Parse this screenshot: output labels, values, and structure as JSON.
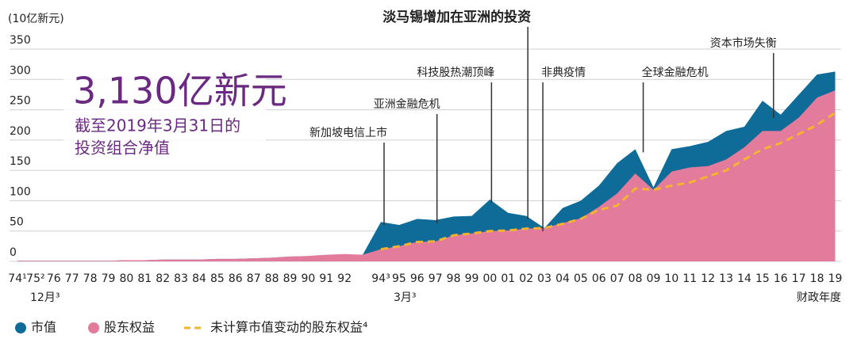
{
  "chart_data": {
    "type": "area",
    "y_unit_label": "(10亿新元)",
    "x_axis_label": "财政年度",
    "categories": [
      "74¹",
      "75²",
      "76",
      "77",
      "78",
      "79",
      "80",
      "81",
      "82",
      "83",
      "84",
      "85",
      "86",
      "87",
      "88",
      "89",
      "90",
      "91",
      "92",
      null,
      "94³",
      "95",
      "96",
      "97",
      "98",
      "99",
      "00",
      "01",
      "02",
      "03",
      "04",
      "05",
      "06",
      "07",
      "08",
      "09",
      "10",
      "11",
      "12",
      "13",
      "14",
      "15",
      "16",
      "17",
      "18",
      "19"
    ],
    "x_sublabels": [
      {
        "text": "12月³",
        "category": "74¹"
      },
      {
        "text": "3月³",
        "category": "94³"
      }
    ],
    "series": [
      {
        "name": "市值",
        "color": "#0f6b98",
        "values": [
          1,
          1,
          1,
          1,
          1,
          1,
          2,
          2,
          3,
          3,
          3,
          4,
          4,
          5,
          6,
          8,
          8,
          10,
          11,
          11,
          65,
          60,
          70,
          68,
          74,
          75,
          102,
          80,
          75,
          55,
          88,
          100,
          125,
          162,
          185,
          122,
          185,
          190,
          197,
          215,
          222,
          265,
          242,
          275,
          308,
          313
        ]
      },
      {
        "name": "股东权益",
        "color": "#e27b9c",
        "values": [
          1,
          1,
          1,
          1,
          1,
          1,
          2,
          2,
          3,
          3,
          3,
          4,
          4,
          5,
          6,
          8,
          9,
          11,
          12,
          11,
          20,
          25,
          32,
          33,
          43,
          46,
          50,
          51,
          54,
          55,
          63,
          71,
          90,
          112,
          145,
          118,
          148,
          155,
          157,
          168,
          188,
          215,
          215,
          237,
          270,
          282
        ]
      },
      {
        "name": "未计算市值变动的股东权益⁴",
        "color": "#f4b431",
        "dashed": true,
        "values": [
          null,
          null,
          null,
          null,
          null,
          null,
          null,
          null,
          null,
          null,
          null,
          null,
          null,
          null,
          null,
          null,
          null,
          null,
          null,
          null,
          20,
          25,
          32,
          33,
          43,
          46,
          50,
          51,
          54,
          55,
          62,
          70,
          85,
          92,
          120,
          118,
          125,
          130,
          140,
          150,
          168,
          185,
          195,
          210,
          225,
          245
        ]
      }
    ],
    "ylim": [
      0,
      350
    ],
    "yticks": [
      0,
      50,
      100,
      150,
      200,
      250,
      300,
      350
    ],
    "grid": true,
    "annotations": [
      {
        "text": "新加坡电信上市",
        "category": "94³"
      },
      {
        "text": "亚洲金融危机",
        "category": "97"
      },
      {
        "text": "科技股热潮顶峰",
        "category": "00"
      },
      {
        "text": "淡马锡增加在亚洲的投资",
        "category": "02"
      },
      {
        "text": "非典疫情",
        "category": "03"
      },
      {
        "text": "全球金融危机",
        "category": "08"
      },
      {
        "text": "资本市场失衡",
        "category": "16"
      }
    ],
    "headline": {
      "value_text": "3,130亿新元",
      "lines": [
        "截至2019年3月31日的",
        "投资组合净值"
      ]
    }
  }
}
